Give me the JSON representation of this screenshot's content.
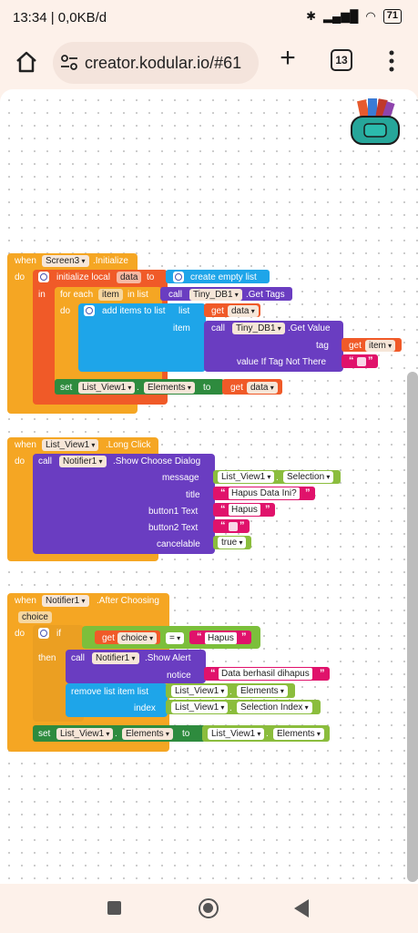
{
  "status": {
    "time": "13:34",
    "net": "0,0KB/d",
    "battery": "71"
  },
  "browser": {
    "url": "creator.kodular.io/#61",
    "tab_count": "13"
  },
  "blocks": {
    "init": {
      "when": "when",
      "component": "Screen3",
      "event": ".Initialize",
      "do": "do",
      "init_local": "initialize local",
      "var": "data",
      "to": "to",
      "create_list": "create empty list",
      "in": "in",
      "for_each": "for each",
      "item": "item",
      "in_list": "in list",
      "call": "call",
      "db": "Tiny_DB1",
      "get_tags": ".Get Tags",
      "do2": "do",
      "add_items": "add items to list",
      "list": "list",
      "get": "get",
      "get_data": "data",
      "item_lbl": "item",
      "call2": "call",
      "db2": "Tiny_DB1",
      "get_value": ".Get Value",
      "tag": "tag",
      "get2": "get",
      "get_item": "item",
      "value_if": "value If Tag Not There",
      "set": "set",
      "list_view": "List_View1",
      "elements": "Elements",
      "to2": "to",
      "get3": "get",
      "get_data2": "data"
    },
    "longclick": {
      "when": "when",
      "component": "List_View1",
      "event": ".Long Click",
      "do": "do",
      "call": "call",
      "notifier": "Notifier1",
      "method": ".Show Choose Dialog",
      "message": "message",
      "msg_comp": "List_View1",
      "msg_prop": "Selection",
      "title": "title",
      "title_val": "Hapus Data Ini?",
      "button1": "button1 Text",
      "button1_val": "Hapus",
      "button2": "button2 Text",
      "cancelable": "cancelable",
      "cancelable_val": "true"
    },
    "afterchoosing": {
      "when": "when",
      "component": "Notifier1",
      "event": ".After Choosing",
      "param": "choice",
      "do": "do",
      "if": "if",
      "get": "get",
      "get_choice": "choice",
      "op": "=",
      "cmp_val": "Hapus",
      "then": "then",
      "call": "call",
      "notifier": "Notifier1",
      "method": ".Show Alert",
      "notice": "notice",
      "notice_val": "Data berhasil dihapus",
      "remove": "remove list item  list",
      "rm_comp": "List_View1",
      "rm_prop": "Elements",
      "index": "index",
      "idx_comp": "List_View1",
      "idx_prop": "Selection Index",
      "set": "set",
      "set_comp": "List_View1",
      "set_prop": "Elements",
      "to": "to",
      "to_comp": "List_View1",
      "to_prop": "Elements"
    }
  },
  "colors": {
    "event": "#f5a623",
    "local": "#f05a28",
    "list": "#1ea5e9",
    "component_call": "#6a3dc1",
    "setter": "#2e8b3e",
    "getter": "#7cbf3b",
    "text": "#e0126b"
  }
}
